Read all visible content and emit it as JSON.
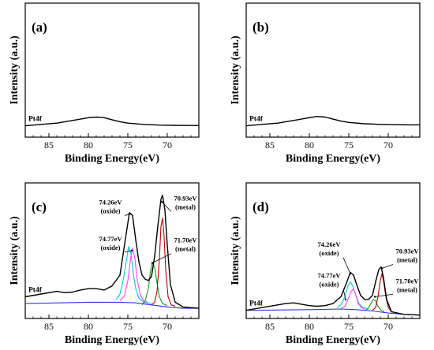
{
  "chart_data": [
    {
      "type": "line",
      "panel_label": "(a)",
      "trace_label": "Pt4f",
      "xlabel": "Binding Energy(eV)",
      "ylabel": "Intensity (a.u.)",
      "x_ticks": [
        85,
        80,
        75,
        70
      ],
      "xlim": [
        88,
        66
      ],
      "ylim": [
        0,
        100
      ],
      "series": [
        {
          "color": "#000000",
          "points": [
            [
              88,
              8.5
            ],
            [
              86,
              9.5
            ],
            [
              84,
              10.5
            ],
            [
              82,
              12.5
            ],
            [
              80,
              14.5
            ],
            [
              79,
              15
            ],
            [
              78,
              14.5
            ],
            [
              77,
              13
            ],
            [
              76,
              11.5
            ],
            [
              75,
              10.5
            ],
            [
              73,
              9.5
            ],
            [
              71,
              9
            ],
            [
              69,
              8.8
            ],
            [
              67,
              8.7
            ],
            [
              66,
              8.7
            ]
          ]
        }
      ],
      "annotations": []
    },
    {
      "type": "line",
      "panel_label": "(b)",
      "trace_label": "Pt4f",
      "xlabel": "Binding Energy(eV)",
      "ylabel": "Intensity (a.u.)",
      "x_ticks": [
        85,
        80,
        75,
        70
      ],
      "xlim": [
        88,
        66
      ],
      "ylim": [
        0,
        100
      ],
      "series": [
        {
          "color": "#000000",
          "points": [
            [
              88,
              8.5
            ],
            [
              86,
              9.5
            ],
            [
              84,
              10.5
            ],
            [
              82,
              12.5
            ],
            [
              80,
              14.5
            ],
            [
              79,
              15.5
            ],
            [
              78,
              15
            ],
            [
              77,
              13.5
            ],
            [
              76,
              12
            ],
            [
              75,
              11
            ],
            [
              73,
              10
            ],
            [
              71,
              9.5
            ],
            [
              69,
              9.3
            ],
            [
              67,
              9.2
            ],
            [
              66,
              9.2
            ]
          ]
        }
      ],
      "annotations": []
    },
    {
      "type": "line",
      "panel_label": "(c)",
      "trace_label": "Pt4f",
      "xlabel": "Binding Energy(eV)",
      "ylabel": "Intensity (a.u.)",
      "x_ticks": [
        85,
        80,
        75,
        70
      ],
      "xlim": [
        88,
        66
      ],
      "ylim": [
        0,
        100
      ],
      "series": [
        {
          "color": "#000000",
          "points": [
            [
              88,
              16
            ],
            [
              86,
              18
            ],
            [
              84,
              20
            ],
            [
              83,
              19
            ],
            [
              82,
              19.5
            ],
            [
              81,
              21
            ],
            [
              80,
              22
            ],
            [
              79,
              22
            ],
            [
              78,
              21
            ],
            [
              77,
              24
            ],
            [
              76,
              32
            ],
            [
              75.4,
              55
            ],
            [
              74.8,
              78
            ],
            [
              74.4,
              76
            ],
            [
              74,
              58
            ],
            [
              73.6,
              42
            ],
            [
              73.2,
              32
            ],
            [
              72.8,
              29
            ],
            [
              72.4,
              28
            ],
            [
              72,
              31
            ],
            [
              71.6,
              46
            ],
            [
              71.2,
              68
            ],
            [
              70.8,
              88
            ],
            [
              70.6,
              91
            ],
            [
              70.3,
              80
            ],
            [
              70,
              54
            ],
            [
              69.6,
              25
            ],
            [
              69,
              12
            ],
            [
              68,
              8.5
            ],
            [
              66,
              7.5
            ]
          ]
        },
        {
          "color": "#00c8d8",
          "points": [
            [
              76.5,
              14
            ],
            [
              76,
              18
            ],
            [
              75.6,
              28
            ],
            [
              75.2,
              42
            ],
            [
              74.9,
              53
            ],
            [
              74.6,
              48
            ],
            [
              74.3,
              33
            ],
            [
              74,
              22
            ],
            [
              73.6,
              15
            ],
            [
              73,
              12
            ],
            [
              72,
              11
            ]
          ]
        },
        {
          "color": "#ff40ff",
          "points": [
            [
              76,
              13
            ],
            [
              75.4,
              17
            ],
            [
              75,
              28
            ],
            [
              74.6,
              46
            ],
            [
              74.4,
              52
            ],
            [
              74.1,
              44
            ],
            [
              73.8,
              28
            ],
            [
              73.4,
              17
            ],
            [
              73,
              13
            ],
            [
              72.5,
              12
            ]
          ]
        },
        {
          "color": "#1a9a1a",
          "points": [
            [
              73.2,
              10
            ],
            [
              72.8,
              13
            ],
            [
              72.4,
              22
            ],
            [
              72.1,
              36
            ],
            [
              71.9,
              41
            ],
            [
              71.6,
              38
            ],
            [
              71.3,
              26
            ],
            [
              71,
              16
            ],
            [
              70.6,
              11
            ],
            [
              70,
              9.5
            ]
          ]
        },
        {
          "color": "#c00000",
          "points": [
            [
              72,
              10
            ],
            [
              71.6,
              12
            ],
            [
              71.3,
              20
            ],
            [
              71,
              44
            ],
            [
              70.8,
              68
            ],
            [
              70.6,
              74
            ],
            [
              70.4,
              60
            ],
            [
              70.2,
              36
            ],
            [
              69.9,
              16
            ],
            [
              69.5,
              10
            ],
            [
              69,
              9
            ]
          ]
        },
        {
          "color": "#3030ff",
          "points": [
            [
              88,
              11
            ],
            [
              80,
              12
            ],
            [
              76,
              12
            ],
            [
              74,
              11.5
            ],
            [
              72,
              10
            ],
            [
              70,
              8.5
            ],
            [
              68,
              7.5
            ],
            [
              66,
              7.5
            ]
          ]
        }
      ],
      "annotations": [
        {
          "lines": [
            "74.26eV",
            "(oxide)"
          ],
          "target": [
            74.8,
            77
          ],
          "text_pos": [
            77.2,
            84
          ]
        },
        {
          "lines": [
            "74.77eV",
            "(oxide)"
          ],
          "target": [
            74.5,
            50
          ],
          "text_pos": [
            77.2,
            57
          ]
        },
        {
          "lines": [
            "70.93eV",
            "(metal)"
          ],
          "target": [
            70.7,
            86
          ],
          "text_pos": [
            67.7,
            87
          ]
        },
        {
          "lines": [
            "71.70eV",
            "(metal)"
          ],
          "target": [
            71.9,
            41
          ],
          "text_pos": [
            67.7,
            56
          ]
        }
      ]
    },
    {
      "type": "line",
      "panel_label": "(d)",
      "trace_label": "Pt4f",
      "xlabel": "Binding Energy(eV)",
      "ylabel": "Intensity (a.u.)",
      "x_ticks": [
        85,
        80,
        75,
        70
      ],
      "xlim": [
        88,
        66
      ],
      "ylim": [
        0,
        100
      ],
      "series": [
        {
          "color": "#000000",
          "points": [
            [
              88,
              6
            ],
            [
              86,
              8
            ],
            [
              84,
              10
            ],
            [
              83,
              11
            ],
            [
              82,
              11.5
            ],
            [
              81,
              10.5
            ],
            [
              80,
              9.5
            ],
            [
              79,
              9
            ],
            [
              78,
              9.5
            ],
            [
              77,
              11
            ],
            [
              76,
              16
            ],
            [
              75.3,
              26
            ],
            [
              74.8,
              34
            ],
            [
              74.4,
              32
            ],
            [
              74,
              25
            ],
            [
              73.5,
              17
            ],
            [
              73,
              14
            ],
            [
              72.5,
              14
            ],
            [
              72,
              17
            ],
            [
              71.6,
              27
            ],
            [
              71.2,
              36
            ],
            [
              70.9,
              38
            ],
            [
              70.6,
              30
            ],
            [
              70.2,
              14
            ],
            [
              69.6,
              5
            ],
            [
              68,
              3
            ],
            [
              66,
              2.5
            ]
          ]
        },
        {
          "color": "#00c8d8",
          "points": [
            [
              76.5,
              8
            ],
            [
              76,
              10
            ],
            [
              75.5,
              16
            ],
            [
              75.1,
              24
            ],
            [
              74.8,
              27
            ],
            [
              74.5,
              24
            ],
            [
              74.1,
              17
            ],
            [
              73.7,
              11
            ],
            [
              73.2,
              8
            ],
            [
              72.5,
              7
            ]
          ]
        },
        {
          "color": "#ff40ff",
          "points": [
            [
              76,
              7.5
            ],
            [
              75.5,
              9
            ],
            [
              75.1,
              14
            ],
            [
              74.7,
              20
            ],
            [
              74.4,
              22
            ],
            [
              74.1,
              17
            ],
            [
              73.8,
              11
            ],
            [
              73.4,
              8
            ],
            [
              73,
              7
            ]
          ]
        },
        {
          "color": "#1a9a1a",
          "points": [
            [
              73,
              6
            ],
            [
              72.6,
              7
            ],
            [
              72.2,
              11
            ],
            [
              71.9,
              14
            ],
            [
              71.6,
              13
            ],
            [
              71.3,
              9
            ],
            [
              70.9,
              6
            ],
            [
              70.5,
              5
            ]
          ]
        },
        {
          "color": "#c00000",
          "points": [
            [
              72,
              6
            ],
            [
              71.6,
              8
            ],
            [
              71.3,
              16
            ],
            [
              71,
              28
            ],
            [
              70.8,
              33
            ],
            [
              70.6,
              28
            ],
            [
              70.3,
              16
            ],
            [
              70,
              8
            ],
            [
              69.6,
              5
            ],
            [
              69,
              4
            ]
          ]
        },
        {
          "color": "#3030ff",
          "points": [
            [
              88,
              6
            ],
            [
              80,
              6.5
            ],
            [
              76,
              7
            ],
            [
              74,
              6.5
            ],
            [
              72,
              5.5
            ],
            [
              70,
              4
            ],
            [
              68,
              3
            ],
            [
              66,
              2.5
            ]
          ]
        }
      ],
      "annotations": [
        {
          "lines": [
            "74.26eV",
            "(oxide)"
          ],
          "target": [
            74.8,
            33
          ],
          "text_pos": [
            77.5,
            53
          ]
        },
        {
          "lines": [
            "74.77eV",
            "(oxide)"
          ],
          "target": [
            75.4,
            14
          ],
          "text_pos": [
            77.5,
            30
          ]
        },
        {
          "lines": [
            "70.93eV",
            "(metal)"
          ],
          "target": [
            70.8,
            37
          ],
          "text_pos": [
            67.6,
            48
          ]
        },
        {
          "lines": [
            "71.70eV",
            "(metal)"
          ],
          "target": [
            71.7,
            16
          ],
          "text_pos": [
            67.6,
            26
          ]
        }
      ]
    }
  ]
}
